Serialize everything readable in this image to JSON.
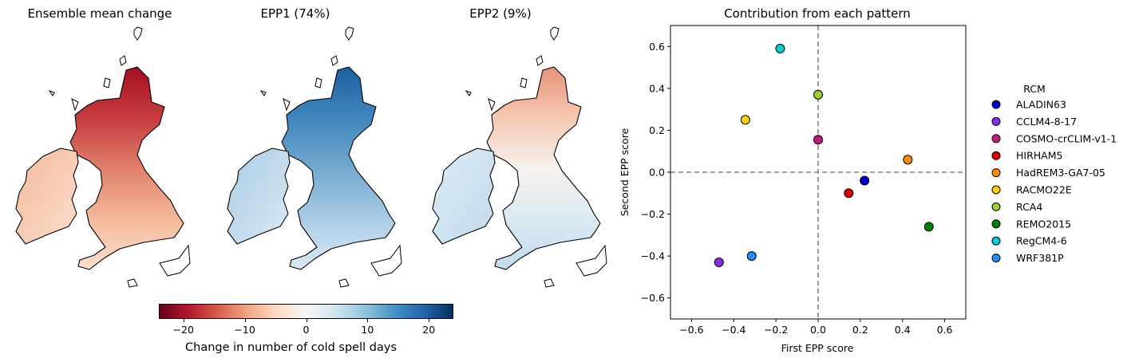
{
  "maps": [
    {
      "title": "Ensemble mean change",
      "colors": [
        "#a2111f",
        "#c63c3f",
        "#e0806b",
        "#f4b99a",
        "#fbe0cf"
      ]
    },
    {
      "title": "EPP1 (74%)",
      "colors": [
        "#1f5f9f",
        "#3f86bd",
        "#74a9cf",
        "#a9cce4",
        "#dbe9f4"
      ]
    },
    {
      "title": "EPP2 (9%)",
      "colors": [
        "#e99279",
        "#f6c8b1",
        "#f7f1ee",
        "#dceaf3",
        "#c2dbec"
      ]
    }
  ],
  "colorbar": {
    "label": "Change in number of cold spell days",
    "ticks": [
      "−20",
      "−10",
      "0",
      "10",
      "20"
    ],
    "tick_values": [
      -20,
      -10,
      0,
      10,
      20
    ],
    "range": [
      -24,
      24
    ],
    "stops": [
      "#67001f",
      "#b2182b",
      "#d6604d",
      "#f4a582",
      "#fddbc7",
      "#f7f7f7",
      "#d1e5f0",
      "#92c5de",
      "#4393c3",
      "#2166ac",
      "#053061"
    ]
  },
  "chart_data": {
    "type": "scatter",
    "title": "Contribution from each pattern",
    "xlabel": "First EPP score",
    "ylabel": "Second EPP score",
    "xlim": [
      -0.7,
      0.7
    ],
    "ylim": [
      -0.7,
      0.7
    ],
    "xticks": [
      -0.6,
      -0.4,
      -0.2,
      0.0,
      0.2,
      0.4,
      0.6
    ],
    "yticks": [
      -0.6,
      -0.4,
      -0.2,
      0.0,
      0.2,
      0.4,
      0.6
    ],
    "xtick_labels": [
      "−0.6",
      "−0.4",
      "−0.2",
      "0.0",
      "0.2",
      "0.4",
      "0.6"
    ],
    "ytick_labels": [
      "−0.6",
      "−0.4",
      "−0.2",
      "0.0",
      "0.2",
      "0.4",
      "0.6"
    ],
    "reference_lines": {
      "x": 0,
      "y": 0,
      "style": "dashed",
      "color": "#808080"
    },
    "grid": false,
    "legend": {
      "title": "RCM",
      "placement": "outside-right"
    },
    "points": [
      {
        "name": "ALADIN63",
        "x": 0.22,
        "y": -0.04,
        "color": "#0000cd"
      },
      {
        "name": "CCLM4-8-17",
        "x": -0.47,
        "y": -0.43,
        "color": "#8a2be2"
      },
      {
        "name": "COSMO-crCLIM-v1-1",
        "x": 0.0,
        "y": 0.155,
        "color": "#c71585"
      },
      {
        "name": "HIRHAM5",
        "x": 0.145,
        "y": -0.1,
        "color": "#e00000"
      },
      {
        "name": "HadREM3-GA7-05",
        "x": 0.425,
        "y": 0.06,
        "color": "#ff8c00"
      },
      {
        "name": "RACMO22E",
        "x": -0.345,
        "y": 0.25,
        "color": "#ffd700"
      },
      {
        "name": "RCA4",
        "x": 0.0,
        "y": 0.37,
        "color": "#9acd32"
      },
      {
        "name": "REMO2015",
        "x": 0.525,
        "y": -0.26,
        "color": "#008000"
      },
      {
        "name": "RegCM4-6",
        "x": -0.18,
        "y": 0.59,
        "color": "#00ced1"
      },
      {
        "name": "WRF381P",
        "x": -0.315,
        "y": -0.4,
        "color": "#1e90ff"
      }
    ]
  }
}
